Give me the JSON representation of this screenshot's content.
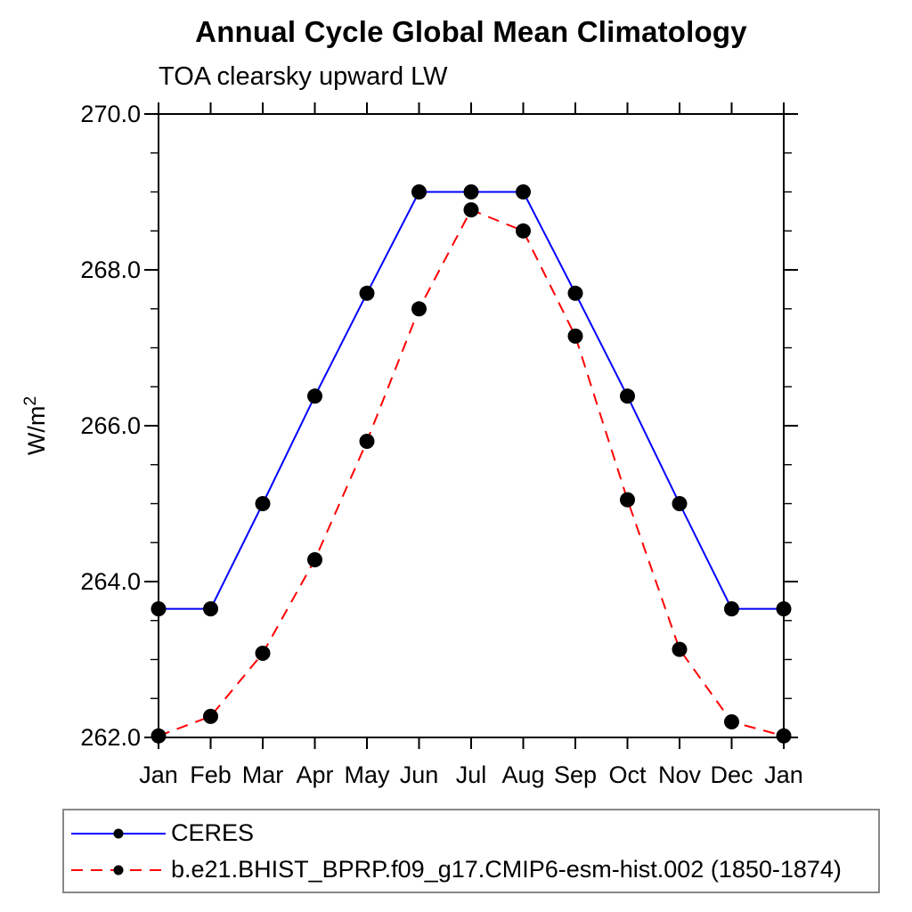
{
  "chart_data": {
    "type": "line",
    "title": "Annual Cycle Global Mean Climatology",
    "subtitle": "TOA clearsky upward LW",
    "ylabel_base": "W/m",
    "ylabel_sup": "2",
    "x_categories": [
      "Jan",
      "Feb",
      "Mar",
      "Apr",
      "May",
      "Jun",
      "Jul",
      "Aug",
      "Sep",
      "Oct",
      "Nov",
      "Dec",
      "Jan"
    ],
    "ylim": [
      262.0,
      270.0
    ],
    "ytick_major": [
      262.0,
      264.0,
      266.0,
      268.0,
      270.0
    ],
    "ytick_major_labels": [
      "262.0",
      "264.0",
      "266.0",
      "268.0",
      "270.0"
    ],
    "ytick_minor_step": 0.5,
    "grid": false,
    "legend_position": "bottom",
    "axis_color": "#000000",
    "series": [
      {
        "name": "CERES",
        "color": "#0000ff",
        "line_style": "solid",
        "marker": "circle",
        "marker_color": "#000000",
        "values": [
          263.65,
          263.65,
          265.0,
          266.38,
          267.7,
          269.0,
          269.0,
          269.0,
          267.7,
          266.38,
          265.0,
          263.65,
          263.65
        ]
      },
      {
        "name": "b.e21.BHIST_BPRP.f09_g17.CMIP6-esm-hist.002 (1850-1874)",
        "color": "#ff0000",
        "line_style": "dashed",
        "marker": "circle",
        "marker_color": "#000000",
        "values": [
          262.02,
          262.27,
          263.08,
          264.28,
          265.8,
          267.5,
          268.77,
          268.5,
          267.15,
          265.05,
          263.13,
          262.2,
          262.02
        ]
      }
    ]
  }
}
